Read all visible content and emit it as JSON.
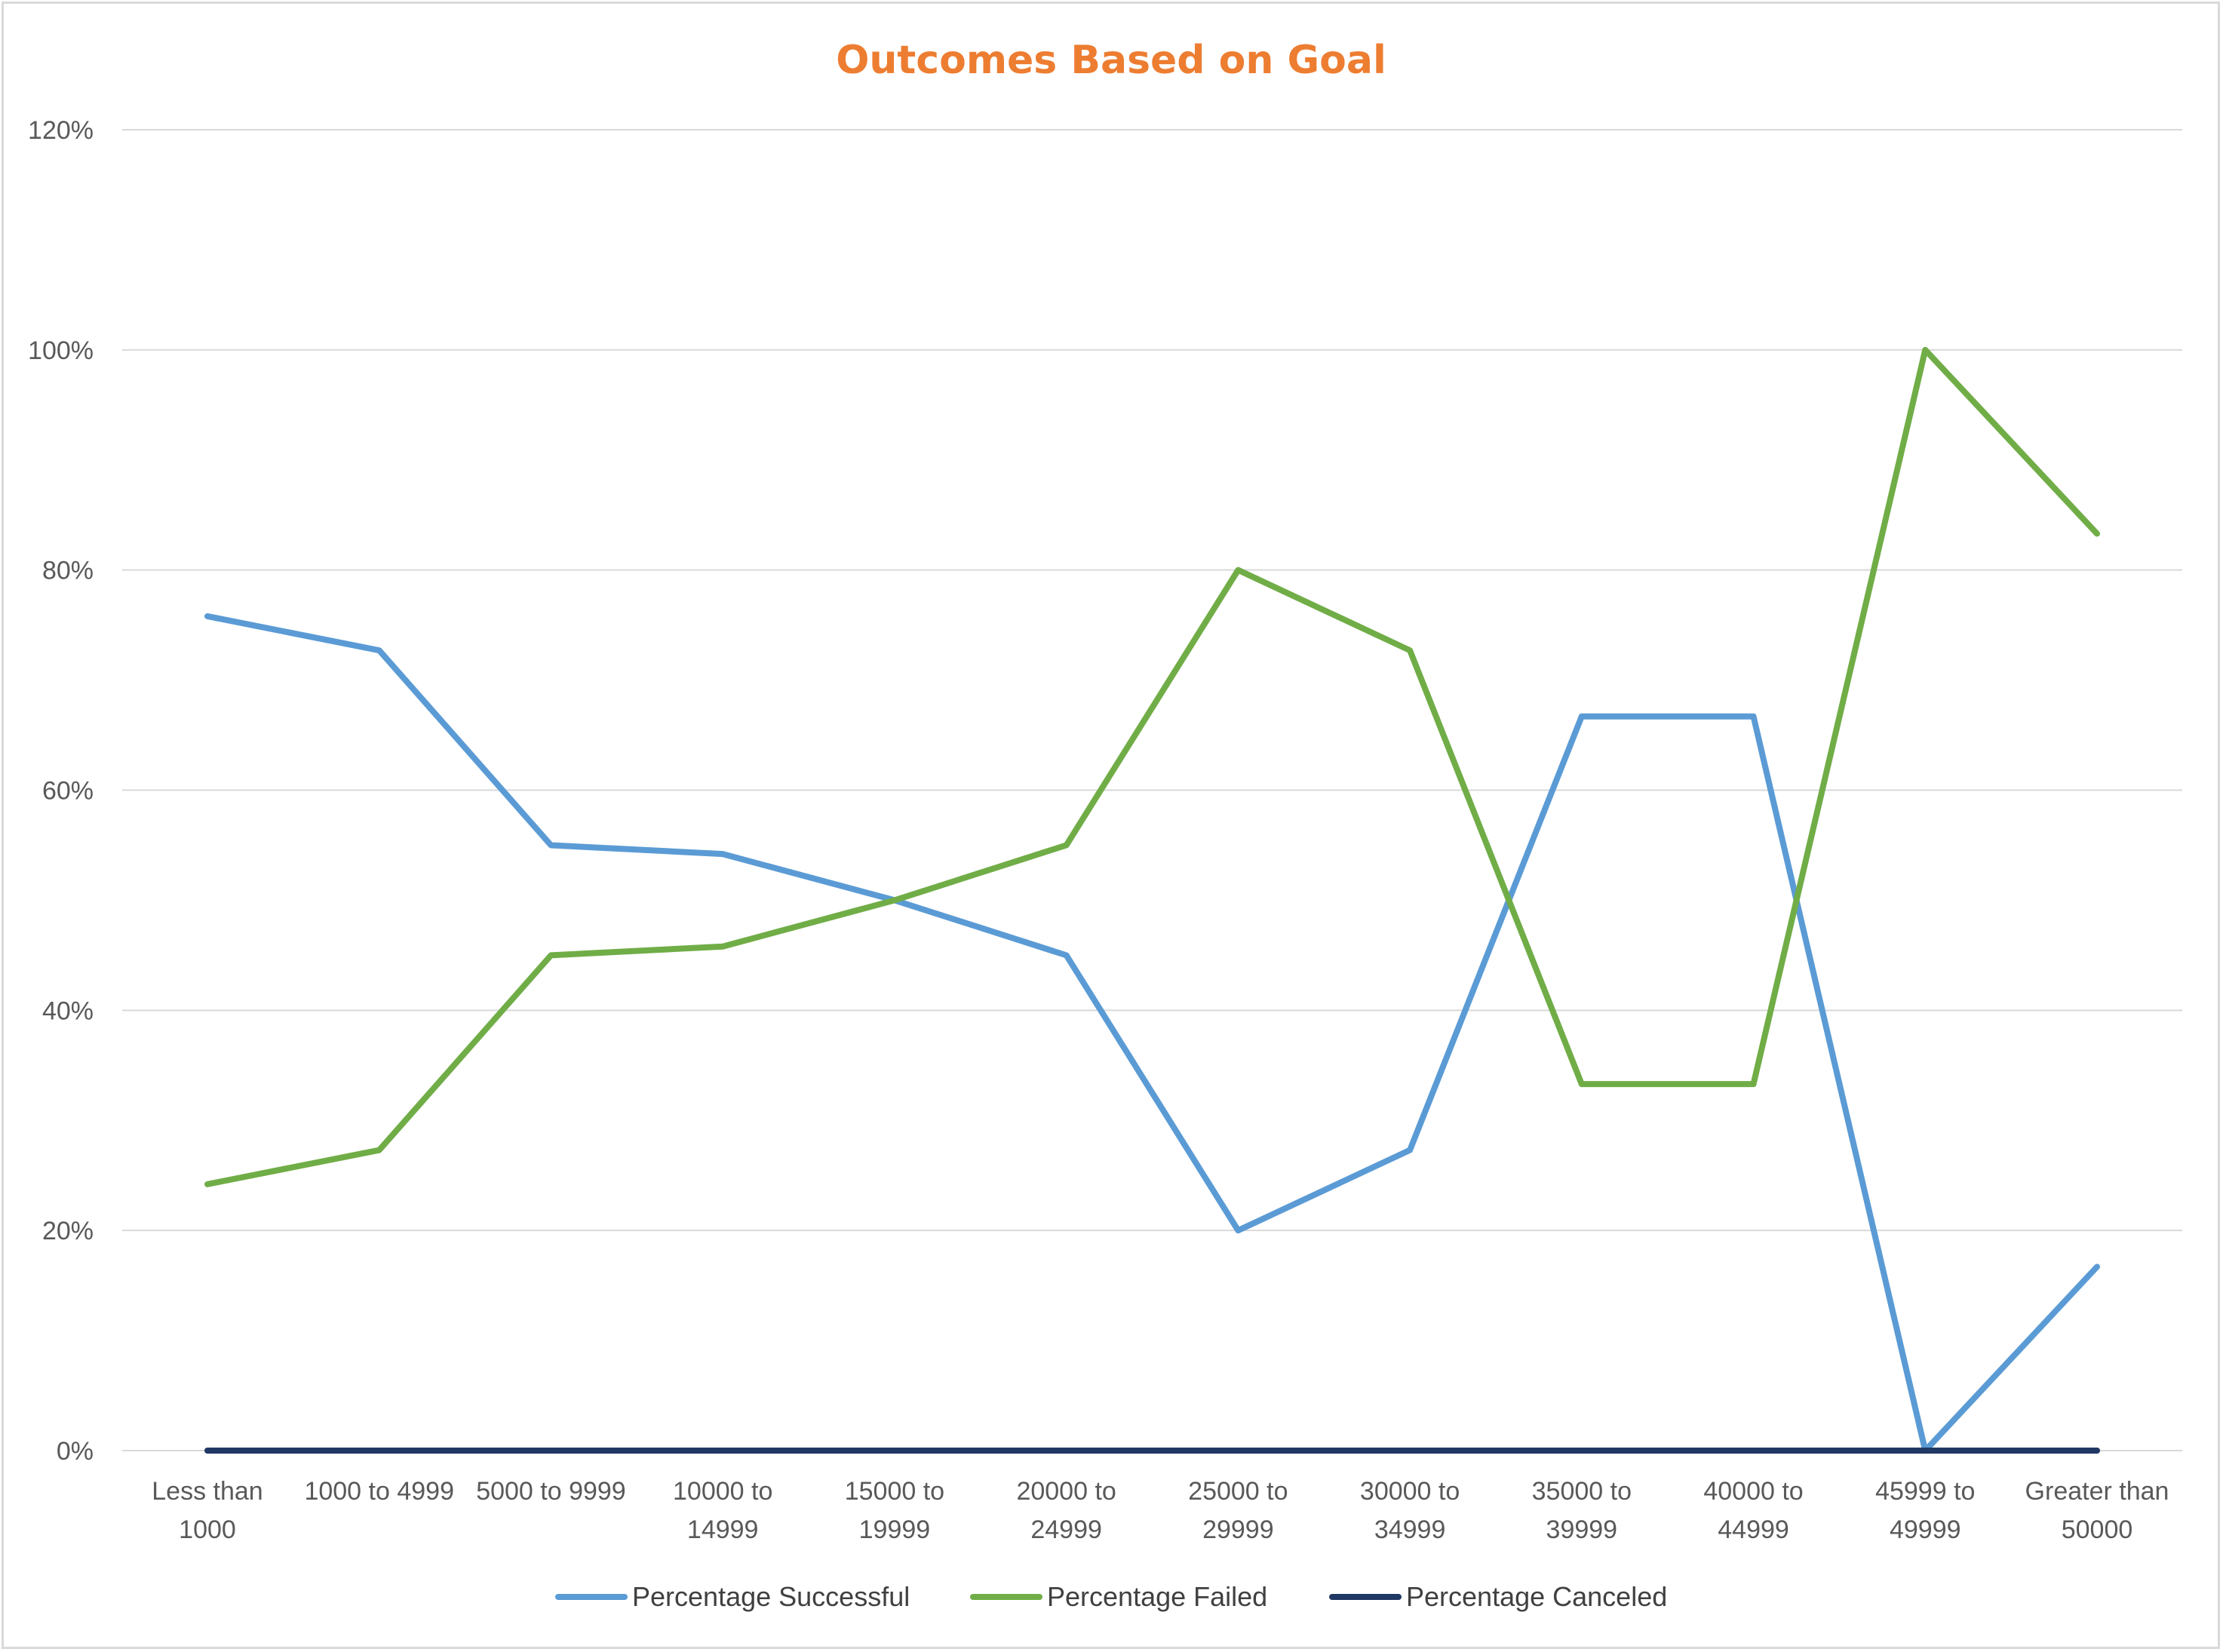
{
  "chart_data": {
    "type": "line",
    "title": "Outcomes Based on Goal",
    "xlabel": "",
    "ylabel": "",
    "categories": [
      [
        "Less than",
        "1000"
      ],
      [
        "1000 to 4999"
      ],
      [
        "5000 to 9999"
      ],
      [
        "10000 to",
        "14999"
      ],
      [
        "15000 to",
        "19999"
      ],
      [
        "20000 to",
        "24999"
      ],
      [
        "25000 to",
        "29999"
      ],
      [
        "30000 to",
        "34999"
      ],
      [
        "35000 to",
        "39999"
      ],
      [
        "40000 to",
        "44999"
      ],
      [
        "45999 to",
        "49999"
      ],
      [
        "Greater than",
        "50000"
      ]
    ],
    "ylim": [
      0,
      120
    ],
    "yticks": [
      0,
      20,
      40,
      60,
      80,
      100,
      120
    ],
    "ytick_labels": [
      "0%",
      "20%",
      "40%",
      "60%",
      "80%",
      "100%",
      "120%"
    ],
    "grid": true,
    "legend_position": "bottom",
    "series": [
      {
        "name": "Percentage Successful",
        "color": "#5b9bd5",
        "values": [
          75.8,
          72.7,
          55.0,
          54.2,
          50.0,
          45.0,
          20.0,
          27.3,
          66.7,
          66.7,
          0.0,
          16.7
        ]
      },
      {
        "name": "Percentage Failed",
        "color": "#70ad47",
        "values": [
          24.2,
          27.3,
          45.0,
          45.8,
          50.0,
          55.0,
          80.0,
          72.7,
          33.3,
          33.3,
          100.0,
          83.3
        ]
      },
      {
        "name": "Percentage Canceled",
        "color": "#203864",
        "values": [
          0,
          0,
          0,
          0,
          0,
          0,
          0,
          0,
          0,
          0,
          0,
          0
        ]
      }
    ]
  },
  "colors": {
    "title": "#ed7d31",
    "gridline": "#d9d9d9",
    "axis_text": "#595959"
  }
}
